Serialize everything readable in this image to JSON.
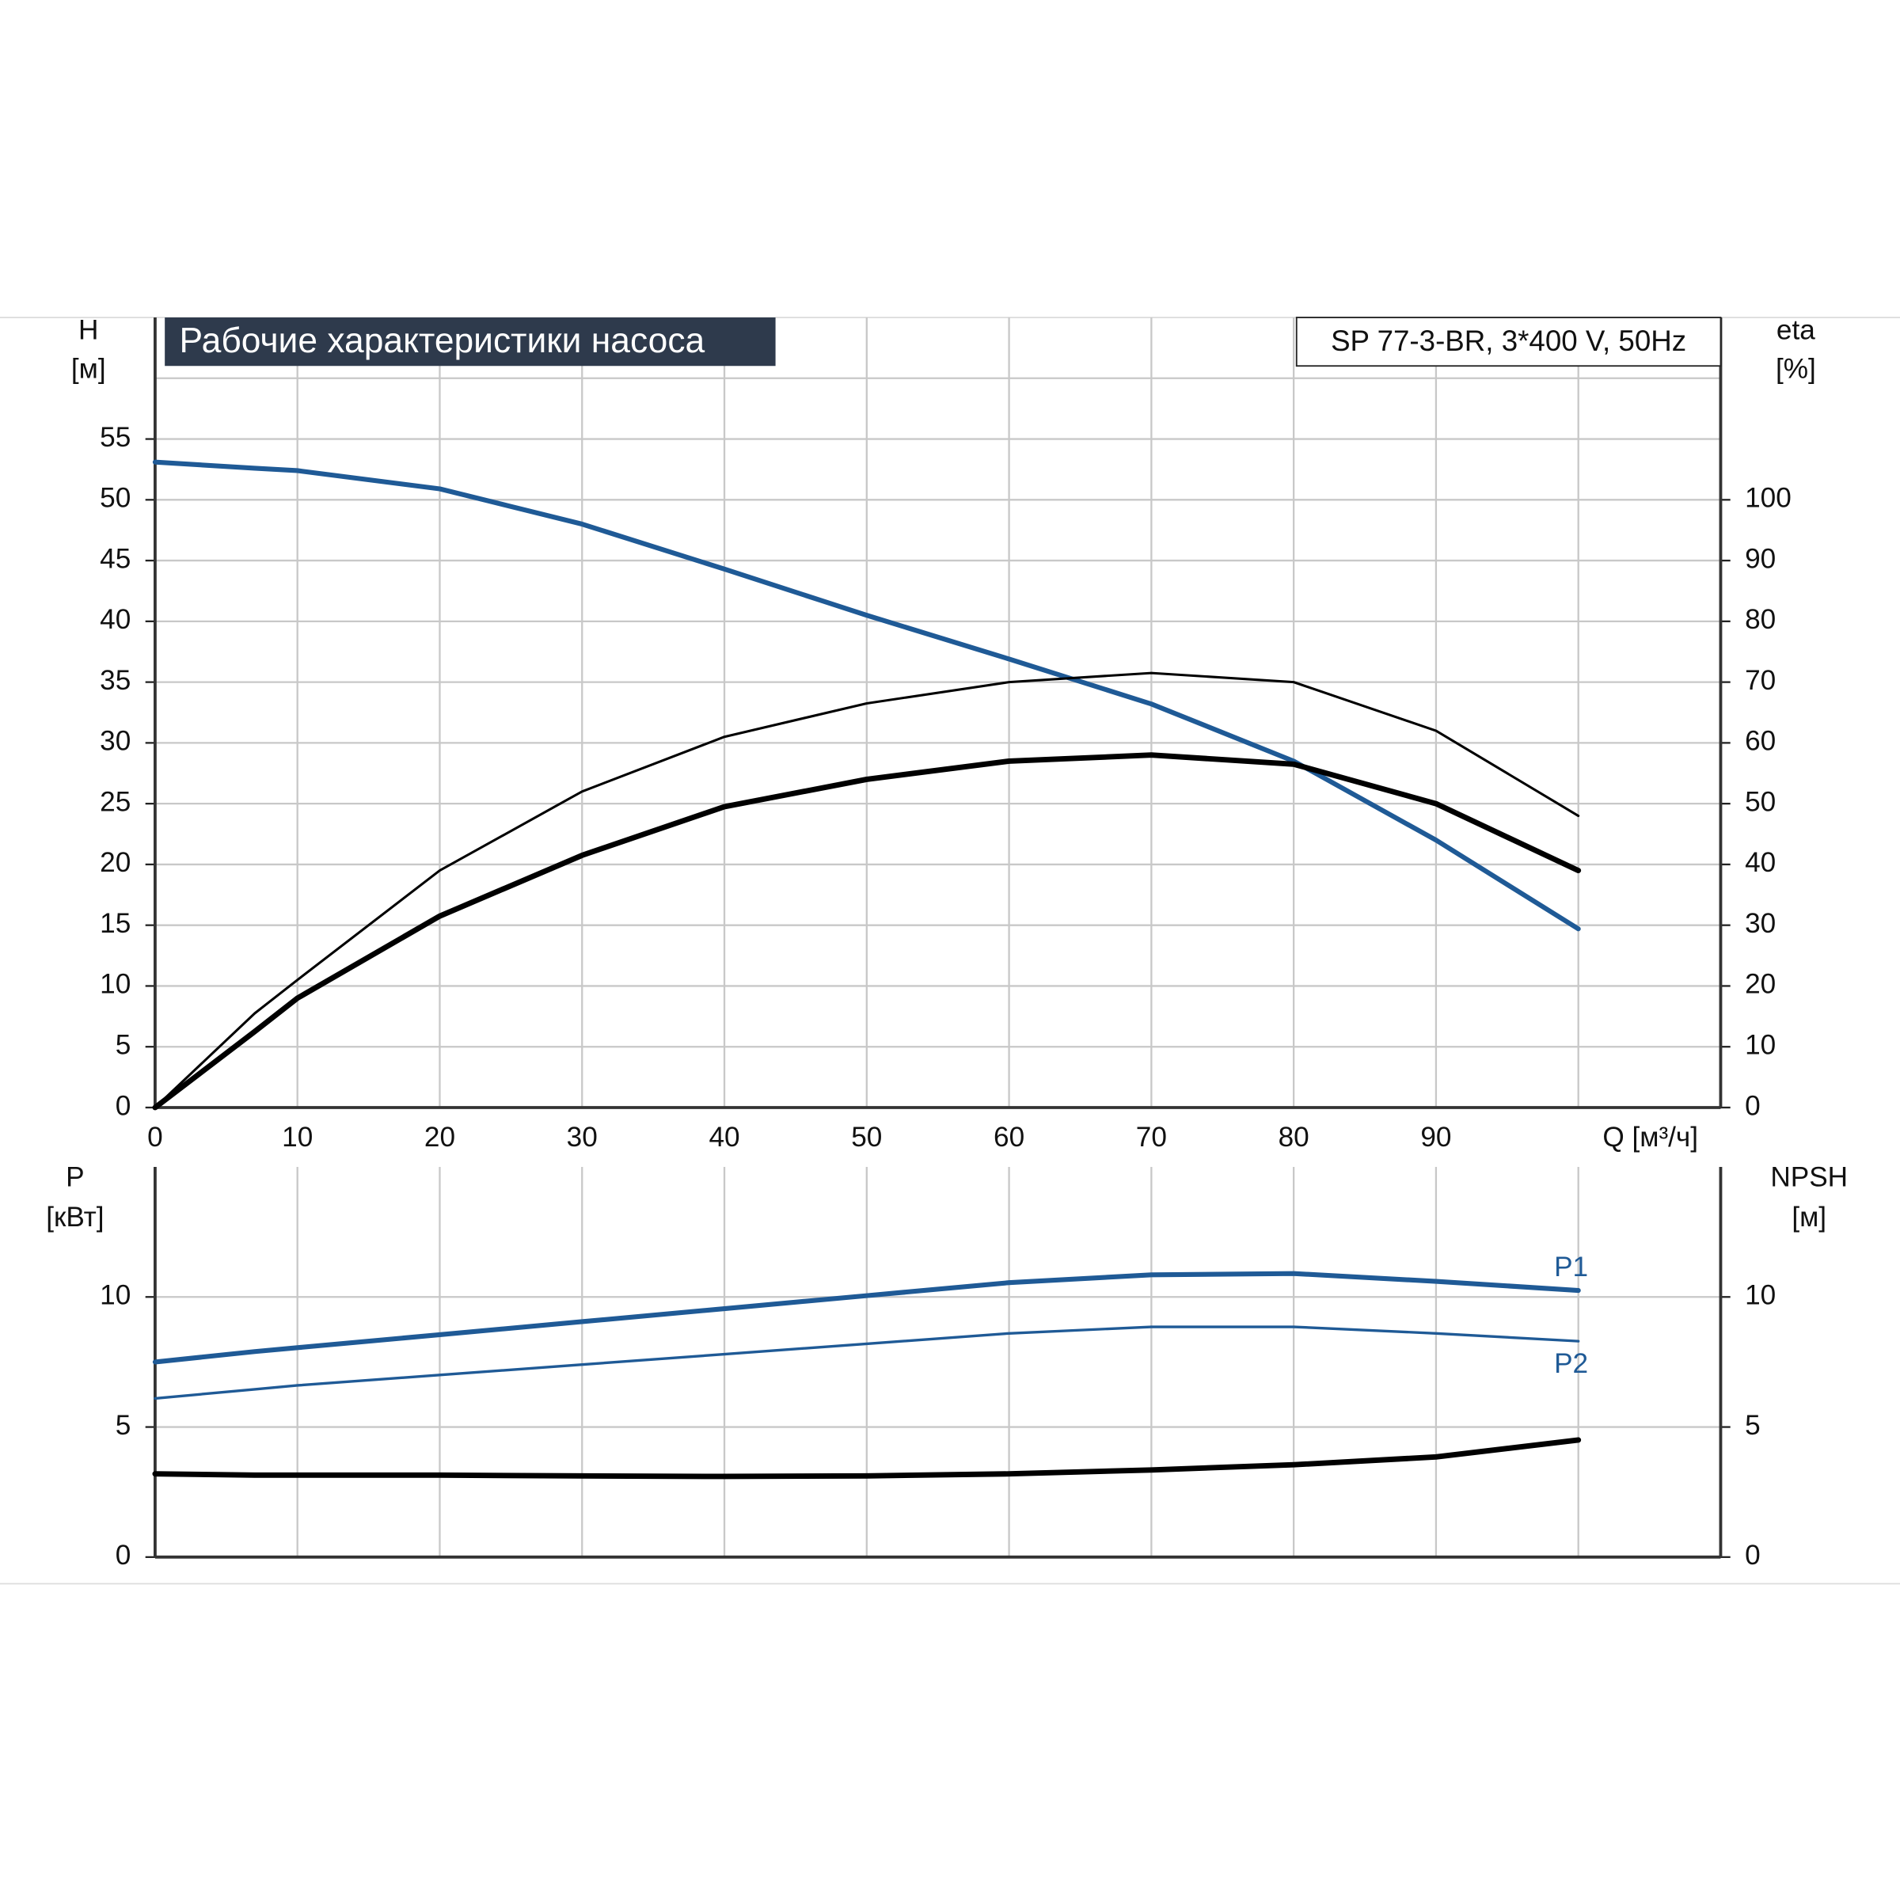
{
  "chart_data": [
    {
      "type": "line",
      "title": "Рабочие характеристики насоса",
      "subtitle": "SP 77-3-BR, 3*400 V, 50Hz",
      "ylabel": {
        "name": "H",
        "unit": "[м]"
      },
      "y2label": {
        "name": "eta",
        "unit": "[%]"
      },
      "xlabel": "Q [м³/ч]",
      "x": [
        0,
        7,
        10,
        20,
        30,
        40,
        50,
        60,
        70,
        80,
        90,
        100
      ],
      "xlim": [
        0,
        110
      ],
      "xticks": [
        0,
        10,
        20,
        30,
        40,
        50,
        60,
        70,
        80,
        90
      ],
      "xgrid": [
        100
      ],
      "ylim": [
        0,
        65
      ],
      "yticks": [
        0,
        5,
        10,
        15,
        20,
        25,
        30,
        35,
        40,
        45,
        50,
        55
      ],
      "ygrid": [
        60
      ],
      "y2lim": [
        0,
        130
      ],
      "y2ticks": [
        0,
        10,
        20,
        30,
        40,
        50,
        60,
        70,
        80,
        90,
        100
      ],
      "grid": true,
      "series": [
        {
          "color": "#1f5a96",
          "width": 4,
          "values": [
            53.1,
            52.6,
            52.4,
            50.9,
            48.0,
            44.3,
            40.5,
            36.9,
            33.2,
            28.5,
            22.0,
            14.7
          ]
        },
        {
          "color": "#000000",
          "width": 2,
          "axis": "y2",
          "values": [
            0,
            15.5,
            21,
            39,
            52,
            61,
            66.5,
            70,
            71.5,
            70,
            62,
            48
          ]
        },
        {
          "color": "#000000",
          "width": 4.5,
          "axis": "y2",
          "values": [
            0,
            12.5,
            18,
            31.5,
            41.5,
            49.5,
            54,
            57,
            58,
            56.5,
            50,
            39
          ]
        }
      ]
    },
    {
      "type": "line",
      "ylabel": {
        "name": "P",
        "unit": "[кВт]"
      },
      "y2label": {
        "name": "NPSH",
        "unit": "[м]"
      },
      "x": [
        0,
        7,
        10,
        20,
        30,
        40,
        50,
        60,
        70,
        80,
        90,
        100
      ],
      "xlim": [
        0,
        110
      ],
      "xgrid": [
        10,
        20,
        30,
        40,
        50,
        60,
        70,
        80,
        90,
        100
      ],
      "ylim": [
        0,
        15
      ],
      "yticks": [
        0,
        5,
        10
      ],
      "y2lim": [
        0,
        15
      ],
      "y2ticks": [
        0,
        5,
        10
      ],
      "grid": true,
      "series": [
        {
          "name": "P1",
          "color": "#1f5a96",
          "width": 4,
          "values": [
            7.5,
            7.9,
            8.05,
            8.55,
            9.05,
            9.55,
            10.05,
            10.55,
            10.85,
            10.9,
            10.6,
            10.25
          ]
        },
        {
          "name": "P2",
          "color": "#1f5a96",
          "width": 2.2,
          "values": [
            6.1,
            6.45,
            6.6,
            7.0,
            7.4,
            7.8,
            8.2,
            8.6,
            8.85,
            8.85,
            8.6,
            8.3
          ]
        },
        {
          "color": "#000000",
          "width": 4.5,
          "axis": "y2",
          "values": [
            3.2,
            3.15,
            3.15,
            3.15,
            3.12,
            3.1,
            3.12,
            3.2,
            3.35,
            3.55,
            3.85,
            4.5
          ]
        }
      ]
    }
  ]
}
